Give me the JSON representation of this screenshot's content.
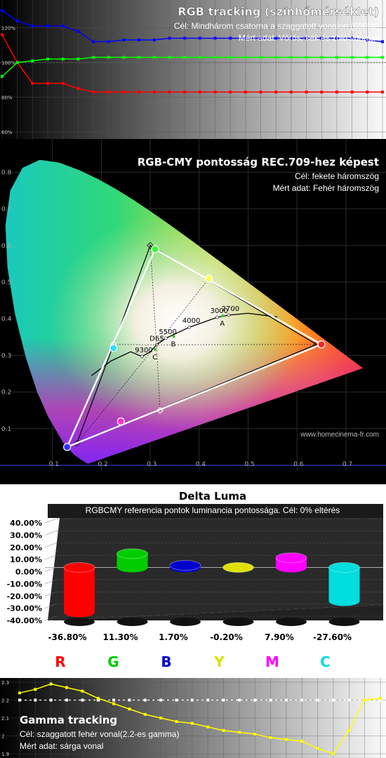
{
  "chart_data": [
    {
      "type": "line",
      "title": "RGB tracking (színhőmérséklet)",
      "subtitle": "Cél: Mindhárom csatorna a szaggatott vonalon (6500k)",
      "note": "Mért adat: Vörös, kék és zöld vonalak",
      "y_ticks": [
        "120%",
        "100%",
        "80%",
        "60%"
      ],
      "ylim": [
        56,
        136
      ],
      "target": 100,
      "grid": true,
      "series": [
        {
          "color": "#ff0000",
          "values": [
            116,
            100,
            88,
            88,
            88,
            85,
            83,
            83,
            83,
            83,
            83,
            83,
            83,
            83,
            83,
            83,
            83,
            83,
            83,
            83,
            83,
            83,
            83,
            83,
            83,
            83
          ]
        },
        {
          "color": "#0000ff",
          "values": [
            130,
            124,
            121,
            121,
            121,
            118,
            112,
            112,
            113,
            113,
            113,
            114,
            114,
            114,
            114,
            114,
            114,
            114,
            114,
            114,
            114,
            114,
            114,
            114,
            113,
            112
          ]
        },
        {
          "color": "#00ff00",
          "values": [
            92,
            100,
            101,
            102,
            102,
            102,
            103,
            103,
            103,
            103,
            103,
            103,
            103,
            103,
            103,
            103,
            103,
            103,
            103,
            103,
            103,
            103,
            103,
            103,
            103,
            103
          ]
        }
      ]
    },
    {
      "type": "scatter",
      "title": "RGB-CMY pontosság REC.709-hez képest",
      "subtitle": "Cél: fekete háromszög",
      "note": "Mért adat: Fehér háromszög",
      "watermark": "www.homecinema-fr.com",
      "x_ticks": [
        0.1,
        0.2,
        0.3,
        0.4,
        0.5,
        0.6,
        0.7
      ],
      "y_ticks": [
        0.1,
        0.2,
        0.3,
        0.4,
        0.5,
        0.6,
        0.7,
        0.8
      ],
      "xlim": [
        0,
        0.8
      ],
      "ylim": [
        0,
        0.9
      ],
      "target_triangle": [
        [
          0.64,
          0.33
        ],
        [
          0.3,
          0.6
        ],
        [
          0.15,
          0.06
        ]
      ],
      "measured_triangle": [
        [
          0.65,
          0.33
        ],
        [
          0.31,
          0.59
        ],
        [
          0.13,
          0.05
        ]
      ],
      "target_secondaries": [
        [
          0.225,
          0.33
        ],
        [
          0.42,
          0.51
        ],
        [
          0.32,
          0.15
        ]
      ],
      "measured_points": [
        {
          "color": "#ff2020",
          "xy": [
            0.65,
            0.33
          ]
        },
        {
          "color": "#30ff30",
          "xy": [
            0.31,
            0.59
          ]
        },
        {
          "color": "#3030ff",
          "xy": [
            0.13,
            0.05
          ]
        },
        {
          "color": "#30e0ff",
          "xy": [
            0.225,
            0.32
          ]
        },
        {
          "color": "#ffff60",
          "xy": [
            0.42,
            0.51
          ]
        },
        {
          "color": "#ff30c0",
          "xy": [
            0.24,
            0.12
          ]
        }
      ],
      "planckian_labels": [
        {
          "label": "2700",
          "xy": [
            0.46,
            0.41
          ]
        },
        {
          "label": "3000",
          "xy": [
            0.437,
            0.404
          ]
        },
        {
          "label": "4000",
          "xy": [
            0.38,
            0.377
          ]
        },
        {
          "label": "5500",
          "xy": [
            0.332,
            0.347
          ]
        },
        {
          "label": "D65",
          "xy": [
            0.313,
            0.329
          ]
        },
        {
          "label": "9300",
          "xy": [
            0.283,
            0.297
          ]
        }
      ],
      "illuminant_labels": [
        {
          "label": "A",
          "xy": [
            0.448,
            0.408
          ]
        },
        {
          "label": "B",
          "xy": [
            0.348,
            0.352
          ]
        },
        {
          "label": "C",
          "xy": [
            0.31,
            0.316
          ]
        }
      ]
    },
    {
      "type": "bar",
      "title": "Delta Luma",
      "subtitle": "RGBCMY referencia pontok luminancia pontossága. Cél: 0% eltérés",
      "y_ticks": [
        "40.00%",
        "30.00%",
        "20.00%",
        "10.00%",
        "0.00%",
        "-10.00%",
        "-20.00%",
        "-30.00%",
        "-40.00%"
      ],
      "ylim": [
        -40,
        40
      ],
      "categories": [
        "R",
        "G",
        "B",
        "Y",
        "M",
        "C"
      ],
      "category_colors": [
        "#ff0000",
        "#00cc00",
        "#0000cc",
        "#e0e000",
        "#ff00ff",
        "#00dddd"
      ],
      "values": [
        -36.8,
        11.3,
        1.7,
        -0.2,
        7.9,
        -27.6
      ],
      "value_labels": [
        "-36.80%",
        "11.30%",
        "1.70%",
        "-0.20%",
        "7.90%",
        "-27.60%"
      ]
    },
    {
      "type": "line",
      "title": "Gamma tracking",
      "subtitle": "Cél: szaggatott fehér vonal(2.2-es gamma)",
      "note": "Mért adat: sárga vonal",
      "y_ticks": [
        "2.3",
        "2.2",
        "2.1",
        "2",
        "1.9"
      ],
      "ylim": [
        1.9,
        2.3
      ],
      "target": 2.2,
      "series": [
        {
          "color": "#ffff00",
          "values": [
            2.24,
            2.26,
            2.29,
            2.27,
            2.25,
            2.21,
            2.18,
            2.15,
            2.12,
            2.1,
            2.08,
            2.07,
            2.05,
            2.03,
            2.02,
            2.01,
            1.99,
            1.98,
            1.97,
            1.93,
            1.9,
            2.03,
            2.2,
            2.21
          ]
        }
      ]
    }
  ]
}
